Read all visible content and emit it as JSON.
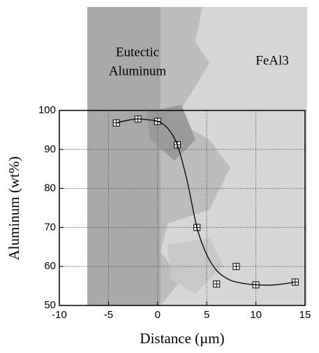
{
  "chart_data": {
    "type": "scatter",
    "xlabel": "Distance (µm)",
    "ylabel": "Aluminum (wt%)",
    "annotations": [
      "Eutectic",
      "Aluminum",
      "FeAl3"
    ],
    "xlim": [
      -10,
      15
    ],
    "xticks": [
      -10,
      -5,
      0,
      5,
      10,
      15
    ],
    "ylim": [
      50,
      100
    ],
    "yticks": [
      50,
      60,
      70,
      80,
      90,
      100
    ],
    "grid": true,
    "series": [
      {
        "style": "markers",
        "color": "#000000",
        "x": [
          -4.2,
          -2,
          0,
          2,
          4,
          6,
          8,
          10,
          14
        ],
        "values": [
          96.8,
          97.8,
          97.2,
          91.2,
          70,
          55.5,
          60,
          55.3,
          56
        ]
      },
      {
        "style": "line",
        "color": "#000000",
        "x": [
          -4.2,
          -3,
          -2,
          -1,
          0,
          1,
          2,
          3,
          4,
          5,
          6,
          7,
          8,
          10,
          12,
          14
        ],
        "values": [
          96.8,
          97.5,
          97.8,
          97.6,
          97.2,
          95.5,
          91.2,
          82,
          70,
          63,
          59,
          57,
          56,
          55.3,
          55.3,
          56
        ]
      }
    ]
  }
}
